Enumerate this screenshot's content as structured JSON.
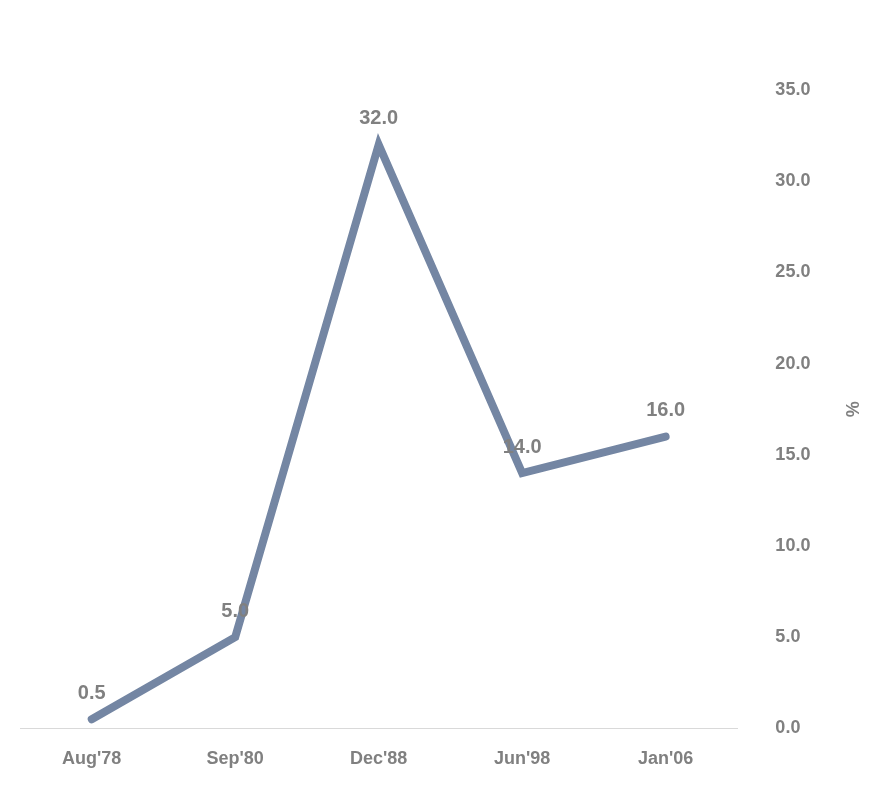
{
  "chart_data": {
    "type": "line",
    "categories": [
      "Aug'78",
      "Sep'80",
      "Dec'88",
      "Jun'98",
      "Jan'06"
    ],
    "values": [
      0.5,
      5,
      32,
      14,
      16
    ],
    "value_labels": [
      "0.5",
      "5.0",
      "32.0",
      "14.0",
      "16.0"
    ],
    "color": "#7486a3",
    "y_label": "%",
    "ylim": [
      0,
      35
    ],
    "yticks": [
      {
        "value": 0,
        "label": "0.0"
      },
      {
        "value": 5,
        "label": "5.0"
      },
      {
        "value": 10,
        "label": "10.0"
      },
      {
        "value": 15,
        "label": "15.0"
      },
      {
        "value": 20,
        "label": "20.0"
      },
      {
        "value": 25,
        "label": "25.0"
      },
      {
        "value": 30,
        "label": "30.0"
      },
      {
        "value": 35,
        "label": "35.0"
      }
    ],
    "grid": false,
    "data_labels": true
  }
}
